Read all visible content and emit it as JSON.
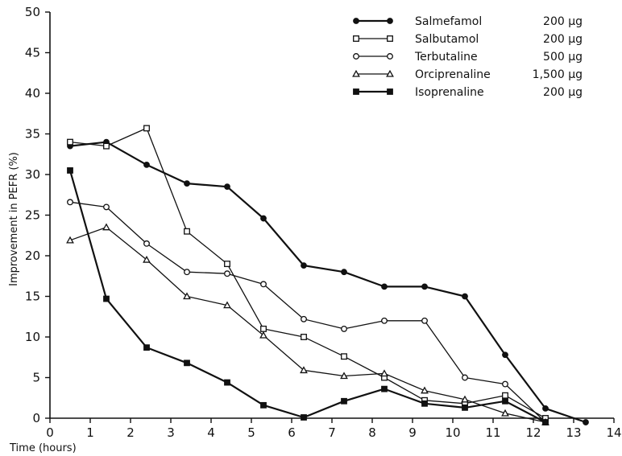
{
  "chart_data": {
    "type": "line",
    "title": "",
    "xlabel": "Time (hours)",
    "ylabel": "Improvement in PEFR (%)",
    "xlim": [
      0,
      14
    ],
    "ylim": [
      0,
      50
    ],
    "xticks": [
      0,
      1,
      2,
      3,
      4,
      5,
      6,
      7,
      8,
      9,
      10,
      11,
      12,
      13,
      14
    ],
    "yticks": [
      0,
      5,
      10,
      15,
      20,
      25,
      30,
      35,
      40,
      45,
      50
    ],
    "grid": false,
    "legend_position": "top-right",
    "series": [
      {
        "name": "Salmefamol",
        "dose": "200 µg",
        "marker": "filled-circle",
        "points": [
          [
            0.5,
            33.5
          ],
          [
            1.4,
            34
          ],
          [
            2.4,
            31.2
          ],
          [
            3.4,
            28.9
          ],
          [
            4.4,
            28.5
          ],
          [
            5.3,
            24.6
          ],
          [
            6.3,
            18.8
          ],
          [
            7.3,
            18
          ],
          [
            8.3,
            16.2
          ],
          [
            9.3,
            16.2
          ],
          [
            10.3,
            15
          ],
          [
            11.3,
            7.8
          ],
          [
            12.3,
            1.2
          ],
          [
            13.3,
            -0.5
          ]
        ]
      },
      {
        "name": "Salbutamol",
        "dose": "200 µg",
        "marker": "open-square",
        "points": [
          [
            0.5,
            34
          ],
          [
            1.4,
            33.5
          ],
          [
            2.4,
            35.7
          ],
          [
            3.4,
            23
          ],
          [
            4.4,
            19
          ],
          [
            5.3,
            11
          ],
          [
            6.3,
            10
          ],
          [
            7.3,
            7.6
          ],
          [
            8.3,
            5
          ],
          [
            9.3,
            2.2
          ],
          [
            10.3,
            1.8
          ],
          [
            11.3,
            2.8
          ],
          [
            12.3,
            0
          ]
        ]
      },
      {
        "name": "Terbutaline",
        "dose": "500 µg",
        "marker": "open-circle",
        "points": [
          [
            0.5,
            26.6
          ],
          [
            1.4,
            26
          ],
          [
            2.4,
            21.5
          ],
          [
            3.4,
            18
          ],
          [
            4.4,
            17.8
          ],
          [
            5.3,
            16.5
          ],
          [
            6.3,
            12.2
          ],
          [
            7.3,
            11
          ],
          [
            8.3,
            12
          ],
          [
            9.3,
            12
          ],
          [
            10.3,
            5
          ],
          [
            11.3,
            4.2
          ],
          [
            12.3,
            -0.5
          ]
        ]
      },
      {
        "name": "Orciprenaline",
        "dose": "1,500 µg",
        "marker": "open-triangle",
        "points": [
          [
            0.5,
            21.9
          ],
          [
            1.4,
            23.5
          ],
          [
            2.4,
            19.5
          ],
          [
            3.4,
            15
          ],
          [
            4.4,
            13.9
          ],
          [
            5.3,
            10.2
          ],
          [
            6.3,
            5.9
          ],
          [
            7.3,
            5.2
          ],
          [
            8.3,
            5.5
          ],
          [
            9.3,
            3.4
          ],
          [
            10.3,
            2.3
          ],
          [
            11.3,
            0.6
          ],
          [
            12.3,
            -0.5
          ]
        ]
      },
      {
        "name": "Isoprenaline",
        "dose": "200 µg",
        "marker": "filled-square",
        "points": [
          [
            0.5,
            30.5
          ],
          [
            1.4,
            14.7
          ],
          [
            2.4,
            8.7
          ],
          [
            3.4,
            6.8
          ],
          [
            4.4,
            4.4
          ],
          [
            5.3,
            1.6
          ],
          [
            6.3,
            0.1
          ],
          [
            7.3,
            2.1
          ],
          [
            8.3,
            3.6
          ],
          [
            9.3,
            1.8
          ],
          [
            10.3,
            1.3
          ],
          [
            11.3,
            2.1
          ],
          [
            12.3,
            -0.5
          ]
        ]
      }
    ]
  }
}
